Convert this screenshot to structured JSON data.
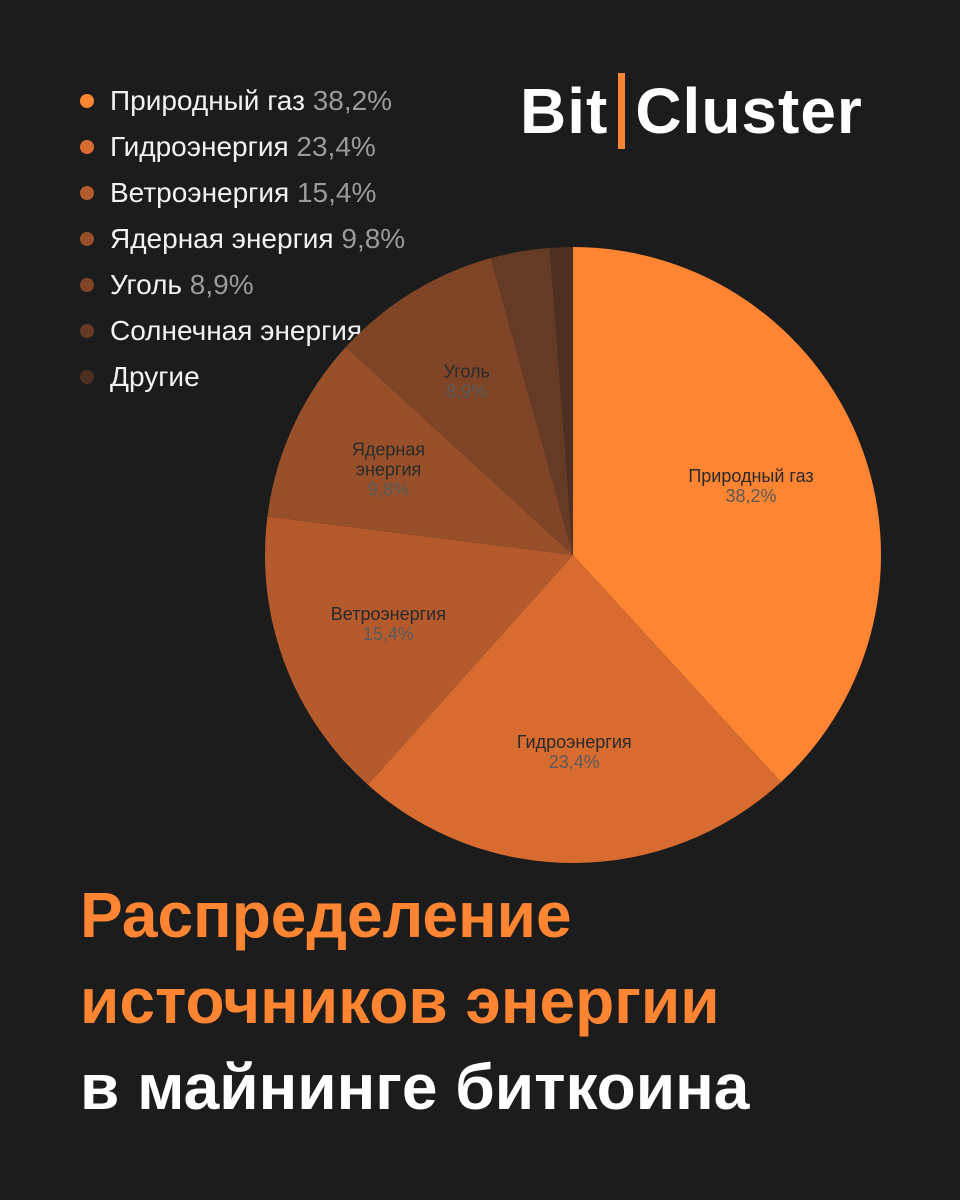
{
  "logo": {
    "left": "Bit",
    "right": "Cluster"
  },
  "legend": [
    {
      "label": "Природный газ",
      "pct": "38,2%"
    },
    {
      "label": "Гидроэнергия",
      "pct": "23,4%"
    },
    {
      "label": "Ветроэнергия",
      "pct": "15,4%"
    },
    {
      "label": "Ядерная энергия",
      "pct": "9,8%"
    },
    {
      "label": "Уголь",
      "pct": "8,9%"
    },
    {
      "label": "Солнечная энергия",
      "pct": ""
    },
    {
      "label": "Другие",
      "pct": ""
    }
  ],
  "title": {
    "line1": "Распределение",
    "line2": "источников энергии",
    "line3": "в майнинге биткоина"
  },
  "chart_data": {
    "type": "pie",
    "title": "Распределение источников энергии в майнинге биткоина",
    "categories": [
      "Природный газ",
      "Гидроэнергия",
      "Ветроэнергия",
      "Ядерная энергия",
      "Уголь",
      "Солнечная энергия",
      "Другие"
    ],
    "values": [
      38.2,
      23.4,
      15.4,
      9.8,
      8.9,
      3.1,
      1.2
    ],
    "slice_labels": [
      {
        "lines": [
          "Природный газ"
        ],
        "pct": "38,2%"
      },
      {
        "lines": [
          "Гидроэнергия"
        ],
        "pct": "23,4%"
      },
      {
        "lines": [
          "Ветроэнергия"
        ],
        "pct": "15,4%"
      },
      {
        "lines": [
          "Ядерная",
          "энергия"
        ],
        "pct": "9,8%"
      },
      {
        "lines": [
          "Уголь"
        ],
        "pct": "8,9%"
      },
      {
        "lines": [],
        "pct": ""
      },
      {
        "lines": [],
        "pct": ""
      }
    ],
    "colors": [
      "#ff8533",
      "#d86c30",
      "#b55a2c",
      "#975029",
      "#804526",
      "#653b25",
      "#4e3023"
    ],
    "legend_position": "top-left"
  }
}
